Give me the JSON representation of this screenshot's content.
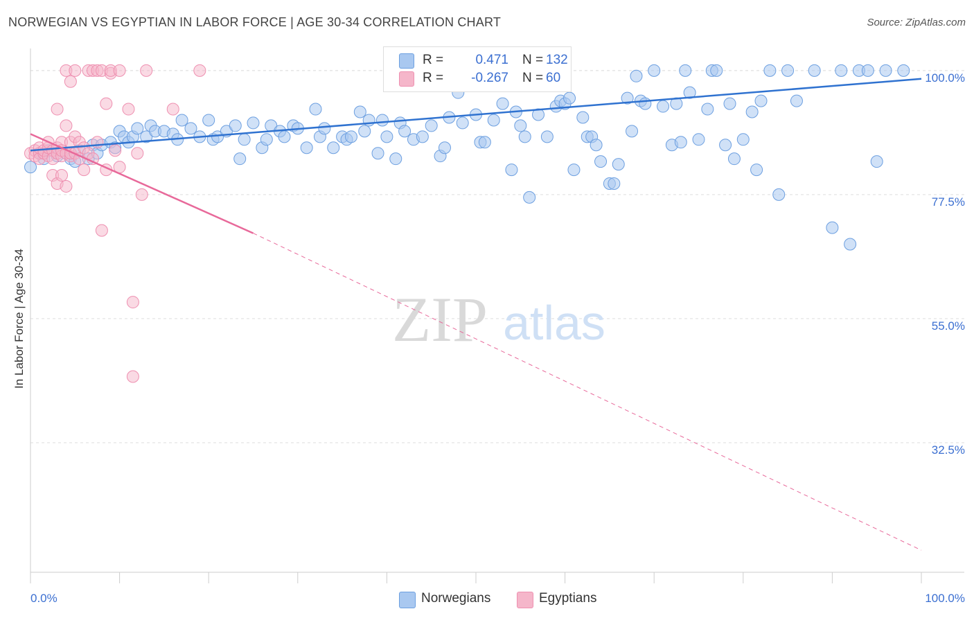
{
  "header": {
    "title": "NORWEGIAN VS EGYPTIAN IN LABOR FORCE | AGE 30-34 CORRELATION CHART",
    "source": "Source: ZipAtlas.com"
  },
  "watermark": {
    "zip": "ZIP",
    "atlas": "atlas"
  },
  "colors": {
    "norwegian_fill": "#a9c8f0",
    "norwegian_stroke": "#6c9fe0",
    "norwegian_line": "#2f72d0",
    "egyptian_fill": "#f5b6ca",
    "egyptian_stroke": "#ee8fb0",
    "egyptian_line": "#e8699a",
    "tick_label": "#3b6fd1",
    "grid": "#dddddd"
  },
  "legend_top": {
    "rows": [
      {
        "r_label": "R =",
        "r_value": "0.471",
        "n_label": "N =",
        "n_value": "132"
      },
      {
        "r_label": "R =",
        "r_value": "-0.267",
        "n_label": "N =",
        "n_value": "60"
      }
    ]
  },
  "legend_bottom": {
    "items": [
      "Norwegians",
      "Egyptians"
    ]
  },
  "chart_data": {
    "type": "scatter",
    "title": "NORWEGIAN VS EGYPTIAN IN LABOR FORCE | AGE 30-34 CORRELATION CHART",
    "xlabel": "",
    "ylabel": "In Labor Force | Age 30-34",
    "xlim": [
      0,
      100
    ],
    "ylim": [
      9,
      104
    ],
    "x_tick_labels": [
      "0.0%",
      "100.0%"
    ],
    "y_ticks": [
      100,
      77.5,
      55,
      32.5
    ],
    "y_tick_labels": [
      "100.0%",
      "77.5%",
      "55.0%",
      "32.5%"
    ],
    "grid": true,
    "legend_position": "bottom",
    "series": [
      {
        "name": "Norwegians",
        "r": 0.471,
        "n": 132,
        "trend": {
          "x": [
            0,
            100
          ],
          "y": [
            85.5,
            98.5
          ]
        },
        "points": [
          [
            0,
            82.5
          ],
          [
            1,
            85
          ],
          [
            1.5,
            84
          ],
          [
            2,
            85.5
          ],
          [
            3,
            84.5
          ],
          [
            4,
            85
          ],
          [
            4.5,
            84
          ],
          [
            5,
            83.5
          ],
          [
            5.5,
            85.5
          ],
          [
            6.5,
            84
          ],
          [
            7,
            86.5
          ],
          [
            7.5,
            85
          ],
          [
            8,
            86.5
          ],
          [
            9,
            87
          ],
          [
            9.5,
            86
          ],
          [
            10,
            89
          ],
          [
            10.5,
            88
          ],
          [
            11,
            87
          ],
          [
            11.5,
            88
          ],
          [
            12,
            89.5
          ],
          [
            13,
            88
          ],
          [
            13.5,
            90
          ],
          [
            14,
            89
          ],
          [
            15,
            89
          ],
          [
            16,
            88.5
          ],
          [
            16.5,
            87.5
          ],
          [
            17,
            91
          ],
          [
            18,
            89.5
          ],
          [
            19,
            88
          ],
          [
            20,
            91
          ],
          [
            20.5,
            87.5
          ],
          [
            21,
            88
          ],
          [
            22,
            89
          ],
          [
            23,
            90
          ],
          [
            23.5,
            84
          ],
          [
            24,
            87.5
          ],
          [
            25,
            90.5
          ],
          [
            26,
            86
          ],
          [
            26.5,
            87.5
          ],
          [
            27,
            90
          ],
          [
            28,
            89
          ],
          [
            28.5,
            88
          ],
          [
            29.5,
            90
          ],
          [
            30,
            89.5
          ],
          [
            31,
            86
          ],
          [
            32,
            93
          ],
          [
            32.5,
            88
          ],
          [
            33,
            89.5
          ],
          [
            34,
            86
          ],
          [
            35,
            88
          ],
          [
            35.5,
            87.5
          ],
          [
            36,
            88
          ],
          [
            37,
            92.5
          ],
          [
            37.5,
            89
          ],
          [
            38,
            91
          ],
          [
            39,
            85
          ],
          [
            39.5,
            91
          ],
          [
            40,
            88
          ],
          [
            41,
            84
          ],
          [
            41.5,
            90.5
          ],
          [
            42,
            89
          ],
          [
            43,
            87.5
          ],
          [
            44,
            88
          ],
          [
            45,
            90
          ],
          [
            46,
            84.5
          ],
          [
            46.5,
            86
          ],
          [
            47,
            91.5
          ],
          [
            48,
            96
          ],
          [
            48.5,
            90.5
          ],
          [
            50,
            92
          ],
          [
            50.5,
            87
          ],
          [
            51,
            87
          ],
          [
            52,
            91
          ],
          [
            53,
            94
          ],
          [
            54,
            82
          ],
          [
            54.5,
            92.5
          ],
          [
            55,
            90
          ],
          [
            55.5,
            88
          ],
          [
            56,
            77
          ],
          [
            57,
            92
          ],
          [
            58,
            88
          ],
          [
            59,
            93.5
          ],
          [
            59.5,
            94.5
          ],
          [
            60,
            94
          ],
          [
            60.5,
            95
          ],
          [
            61,
            82
          ],
          [
            62,
            91.5
          ],
          [
            62.5,
            88
          ],
          [
            63,
            88
          ],
          [
            63.5,
            86.5
          ],
          [
            64,
            83.5
          ],
          [
            65,
            79.5
          ],
          [
            65.5,
            79.5
          ],
          [
            66,
            83
          ],
          [
            67,
            95
          ],
          [
            67.5,
            89
          ],
          [
            68,
            99
          ],
          [
            68.5,
            94.5
          ],
          [
            69,
            94
          ],
          [
            70,
            100
          ],
          [
            71,
            93.5
          ],
          [
            72,
            86.5
          ],
          [
            72.5,
            94
          ],
          [
            73,
            87
          ],
          [
            73.5,
            100
          ],
          [
            74,
            96
          ],
          [
            75,
            87.5
          ],
          [
            76,
            93
          ],
          [
            76.5,
            100
          ],
          [
            77,
            100
          ],
          [
            78,
            86.5
          ],
          [
            78.5,
            94
          ],
          [
            79,
            84
          ],
          [
            80,
            87.5
          ],
          [
            81,
            92.5
          ],
          [
            81.5,
            82
          ],
          [
            82,
            94.5
          ],
          [
            83,
            100
          ],
          [
            84,
            77.5
          ],
          [
            85,
            100
          ],
          [
            86,
            94.5
          ],
          [
            88,
            100
          ],
          [
            90,
            71.5
          ],
          [
            91,
            100
          ],
          [
            92,
            68.5
          ],
          [
            93,
            100
          ],
          [
            94,
            100
          ],
          [
            95,
            83.5
          ],
          [
            96,
            100
          ],
          [
            98,
            100
          ]
        ]
      },
      {
        "name": "Egyptians",
        "r": -0.267,
        "n": 60,
        "trend": {
          "x": [
            0,
            25
          ],
          "y": [
            88.5,
            70.5
          ],
          "dashed_to": {
            "x": 100,
            "y": 13
          }
        },
        "points": [
          [
            0,
            85
          ],
          [
            0.5,
            85.5
          ],
          [
            0.5,
            84.5
          ],
          [
            1,
            85
          ],
          [
            1,
            84
          ],
          [
            1,
            86
          ],
          [
            1.5,
            85
          ],
          [
            1.5,
            85.5
          ],
          [
            2,
            84.5
          ],
          [
            2,
            86
          ],
          [
            2,
            87
          ],
          [
            2.5,
            85.5
          ],
          [
            2.5,
            81
          ],
          [
            2.5,
            84
          ],
          [
            3,
            86
          ],
          [
            3,
            85
          ],
          [
            3,
            93
          ],
          [
            3,
            79.5
          ],
          [
            3.5,
            84.5
          ],
          [
            3.5,
            81
          ],
          [
            3.5,
            87
          ],
          [
            3.5,
            85.5
          ],
          [
            4,
            79
          ],
          [
            4,
            85
          ],
          [
            4,
            90
          ],
          [
            4,
            100
          ],
          [
            4.5,
            87
          ],
          [
            4.5,
            84.5
          ],
          [
            4.5,
            98
          ],
          [
            4.5,
            85
          ],
          [
            5,
            88
          ],
          [
            5,
            100
          ],
          [
            5,
            85
          ],
          [
            5.5,
            87
          ],
          [
            5.5,
            84
          ],
          [
            6,
            82
          ],
          [
            6,
            86
          ],
          [
            6.5,
            100
          ],
          [
            6.5,
            85
          ],
          [
            7,
            100
          ],
          [
            7,
            84
          ],
          [
            7.5,
            100
          ],
          [
            7.5,
            87
          ],
          [
            8,
            100
          ],
          [
            8,
            71
          ],
          [
            8.5,
            94
          ],
          [
            8.5,
            82
          ],
          [
            9,
            99.5
          ],
          [
            9,
            100
          ],
          [
            9.5,
            85.5
          ],
          [
            10,
            100
          ],
          [
            10,
            82.5
          ],
          [
            11,
            93
          ],
          [
            11.5,
            58
          ],
          [
            11.5,
            44.5
          ],
          [
            12,
            85
          ],
          [
            12.5,
            77.5
          ],
          [
            13,
            100
          ],
          [
            16,
            93
          ],
          [
            19,
            100
          ]
        ]
      }
    ]
  }
}
